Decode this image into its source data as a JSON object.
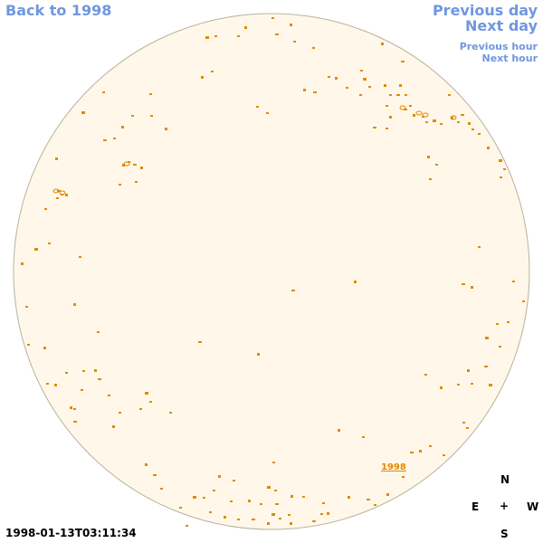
{
  "nav": {
    "back": "Back to 1998",
    "previous_day": "Previous day",
    "next_day": "Next day",
    "previous_hour": "Previous hour",
    "next_hour": "Next hour"
  },
  "timestamp": "1998-01-13T03:11:34",
  "compass": {
    "north": "N",
    "east": "E",
    "center": "+",
    "west": "W",
    "south": "S"
  },
  "disk": {
    "year_label": "1998"
  },
  "colors": {
    "disk_fill": "#fff8ea",
    "disk_border": "#b9b0a0",
    "feature": "#e08a00",
    "nav": "#6f97df"
  }
}
